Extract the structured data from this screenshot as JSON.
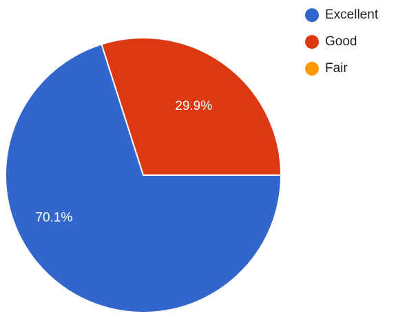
{
  "chart_data": {
    "type": "pie",
    "categories": [
      "Excellent",
      "Good",
      "Fair"
    ],
    "values": [
      70.1,
      29.9,
      0
    ],
    "value_labels": [
      "70.1%",
      "29.9%",
      ""
    ],
    "colors": [
      "#3366cc",
      "#dc3912",
      "#ff9900"
    ],
    "legend_position": "right"
  }
}
